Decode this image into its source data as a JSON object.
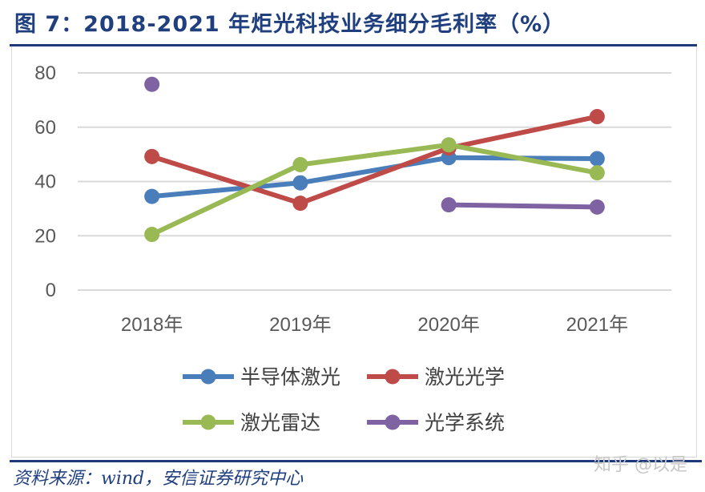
{
  "header": {
    "title": "图 7：2018-2021 年炬光科技业务细分毛利率（%）"
  },
  "footer": {
    "source": "资料来源：wind，安信证券研究中心",
    "watermark": "知乎 @以是"
  },
  "chart_data": {
    "type": "line",
    "title": "2018-2021 年炬光科技业务细分毛利率（%）",
    "categories": [
      "2018年",
      "2019年",
      "2020年",
      "2021年"
    ],
    "ylim": [
      0,
      80
    ],
    "yticks": [
      0,
      20,
      40,
      60,
      80
    ],
    "grid": true,
    "legend_position": "bottom",
    "series": [
      {
        "name": "半导体激光",
        "color": "#4a7ebb",
        "values": [
          34.5,
          39.5,
          48.8,
          48.4
        ]
      },
      {
        "name": "激光光学",
        "color": "#be4b48",
        "values": [
          49.2,
          32.0,
          52.3,
          63.9
        ]
      },
      {
        "name": "激光雷达",
        "color": "#98b954",
        "values": [
          20.5,
          46.2,
          53.5,
          43.2
        ]
      },
      {
        "name": "光学系统",
        "color": "#7e62a1",
        "values": [
          75.8,
          null,
          31.4,
          30.6
        ]
      }
    ]
  }
}
